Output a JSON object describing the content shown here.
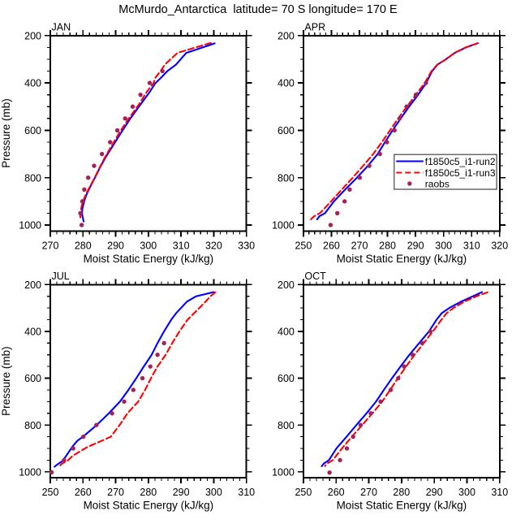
{
  "title": "McMurdo_Antarctica  latitude= 70 S longitude= 170 E",
  "colors": {
    "run2_line": "#0000ff",
    "run3_line": "#ff0000",
    "raobs_marker": "#a52158",
    "axis": "#000000",
    "background": "#ffffff"
  },
  "axes": {
    "xlabel": "Moist Static Energy (kJ/kg)",
    "ylabel": "Pressure (mb)",
    "yticks": [
      200,
      400,
      600,
      800,
      1000
    ],
    "ylim": [
      200,
      1025
    ],
    "y_minor_step": 50,
    "x_major_step": 10,
    "x_minor_step": 2,
    "y_axis_inverted": true,
    "grid": false
  },
  "legend": {
    "position": "inside-right-middle-of-APR-panel",
    "entries": [
      {
        "label": "f1850c5_i1-run2",
        "style": "solid-line",
        "color": "#0000ff"
      },
      {
        "label": "f1850c5_i1-run3",
        "style": "dashed-line",
        "color": "#ff0000"
      },
      {
        "label": "raobs",
        "style": "dot-marker",
        "color": "#a52158"
      }
    ]
  },
  "chart_data": [
    {
      "type": "line",
      "panel": "JAN",
      "xlabel": "Moist Static Energy (kJ/kg)",
      "xlim": [
        270,
        330
      ],
      "xticks": [
        270,
        280,
        290,
        300,
        310,
        320,
        330
      ],
      "show_legend": false,
      "series": [
        {
          "name": "f1850c5_i1-run2",
          "type": "line",
          "style": "solid",
          "color_key": "run2_line",
          "points": [
            [
              320.3,
              233
            ],
            [
              311.6,
              273
            ],
            [
              308.5,
              322
            ],
            [
              305.8,
              350
            ],
            [
              303.8,
              379
            ],
            [
              302.2,
              400
            ],
            [
              300.5,
              436
            ],
            [
              297.4,
              495
            ],
            [
              294.4,
              552
            ],
            [
              291.7,
              609
            ],
            [
              289.3,
              662
            ],
            [
              287.0,
              712
            ],
            [
              285.2,
              757
            ],
            [
              283.7,
              799
            ],
            [
              282.3,
              836
            ],
            [
              281.2,
              867
            ],
            [
              280.5,
              893
            ],
            [
              280.1,
              915
            ],
            [
              279.8,
              932
            ],
            [
              279.7,
              950
            ],
            [
              279.9,
              966
            ],
            [
              280.2,
              985
            ]
          ]
        },
        {
          "name": "f1850c5_i1-run3",
          "type": "line",
          "style": "dashed",
          "color_key": "run3_line",
          "points": [
            [
              319.1,
              231
            ],
            [
              308.9,
              273
            ],
            [
              305.1,
              322
            ],
            [
              303.7,
              350
            ],
            [
              302.1,
              379
            ],
            [
              301.6,
              400
            ],
            [
              299.6,
              436
            ],
            [
              296.9,
              495
            ],
            [
              293.9,
              552
            ],
            [
              291.2,
              609
            ],
            [
              288.9,
              662
            ],
            [
              286.8,
              712
            ],
            [
              285.1,
              757
            ],
            [
              283.6,
              799
            ],
            [
              282.2,
              836
            ],
            [
              281.0,
              867
            ],
            [
              280.2,
              893
            ],
            [
              279.7,
              915
            ],
            [
              279.4,
              932
            ],
            [
              279.2,
              950
            ],
            [
              279.2,
              968
            ]
          ]
        },
        {
          "name": "raobs",
          "type": "scatter",
          "color_key": "raobs_marker",
          "points": [
            [
              279.6,
              1000
            ],
            [
              279.2,
              950
            ],
            [
              279.8,
              900
            ],
            [
              280.4,
              850
            ],
            [
              281.6,
              800
            ],
            [
              283.4,
              750
            ],
            [
              285.8,
              700
            ],
            [
              288.3,
              650
            ],
            [
              290.5,
              600
            ],
            [
              292.9,
              550
            ],
            [
              295.2,
              500
            ],
            [
              297.6,
              450
            ],
            [
              300.4,
              400
            ],
            [
              304.3,
              350
            ]
          ]
        }
      ]
    },
    {
      "type": "line",
      "panel": "APR",
      "xlabel": "Moist Static Energy (kJ/kg)",
      "xlim": [
        250,
        320
      ],
      "xticks": [
        250,
        260,
        270,
        280,
        290,
        300,
        310,
        320
      ],
      "show_legend": true,
      "series": [
        {
          "name": "f1850c5_i1-run2",
          "type": "line",
          "style": "solid",
          "color_key": "run2_line",
          "points": [
            [
              312.2,
              232
            ],
            [
              308.0,
              250
            ],
            [
              304.0,
              273
            ],
            [
              300.8,
              300
            ],
            [
              297.9,
              322
            ],
            [
              295.9,
              350
            ],
            [
              293.8,
              400
            ],
            [
              290.9,
              450
            ],
            [
              287.7,
              500
            ],
            [
              284.7,
              550
            ],
            [
              281.8,
              600
            ],
            [
              279.1,
              650
            ],
            [
              276.5,
              700
            ],
            [
              273.0,
              750
            ],
            [
              269.1,
              800
            ],
            [
              264.9,
              850
            ],
            [
              260.9,
              900
            ],
            [
              257.7,
              950
            ],
            [
              255.7,
              963
            ],
            [
              254.9,
              976
            ]
          ]
        },
        {
          "name": "f1850c5_i1-run3",
          "type": "line",
          "style": "dashed",
          "color_key": "run3_line",
          "points": [
            [
              312.1,
              233
            ],
            [
              307.9,
              250
            ],
            [
              303.9,
              273
            ],
            [
              301.0,
              300
            ],
            [
              297.8,
              322
            ],
            [
              295.7,
              350
            ],
            [
              293.3,
              400
            ],
            [
              290.1,
              450
            ],
            [
              286.9,
              500
            ],
            [
              283.8,
              550
            ],
            [
              280.9,
              600
            ],
            [
              278.0,
              650
            ],
            [
              274.9,
              700
            ],
            [
              271.3,
              750
            ],
            [
              267.6,
              800
            ],
            [
              263.7,
              850
            ],
            [
              259.9,
              900
            ],
            [
              255.9,
              950
            ],
            [
              253.8,
              963
            ],
            [
              252.7,
              976
            ]
          ]
        },
        {
          "name": "raobs",
          "type": "scatter",
          "color_key": "raobs_marker",
          "points": [
            [
              259.7,
              1000
            ],
            [
              262.1,
              950
            ],
            [
              264.7,
              900
            ],
            [
              266.5,
              850
            ],
            [
              270.1,
              800
            ],
            [
              273.5,
              750
            ],
            [
              277.3,
              700
            ],
            [
              279.8,
              650
            ],
            [
              282.5,
              600
            ],
            [
              284.3,
              550
            ],
            [
              286.8,
              500
            ],
            [
              290.1,
              450
            ],
            [
              293.7,
              400
            ]
          ]
        }
      ]
    },
    {
      "type": "line",
      "panel": "JUL",
      "xlabel": "Moist Static Energy (kJ/kg)",
      "xlim": [
        250,
        310
      ],
      "xticks": [
        250,
        260,
        270,
        280,
        290,
        300,
        310
      ],
      "show_legend": false,
      "series": [
        {
          "name": "f1850c5_i1-run2",
          "type": "line",
          "style": "solid",
          "color_key": "run2_line",
          "points": [
            [
              300.0,
              232
            ],
            [
              294.6,
              250
            ],
            [
              291.8,
              273
            ],
            [
              288.5,
              322
            ],
            [
              287.0,
              350
            ],
            [
              284.8,
              400
            ],
            [
              282.8,
              450
            ],
            [
              281.0,
              500
            ],
            [
              278.6,
              550
            ],
            [
              276.3,
              600
            ],
            [
              273.9,
              650
            ],
            [
              271.3,
              700
            ],
            [
              267.9,
              750
            ],
            [
              264.2,
              800
            ],
            [
              260.0,
              850
            ],
            [
              258.3,
              867
            ],
            [
              256.9,
              890
            ],
            [
              255.9,
              910
            ],
            [
              254.7,
              935
            ],
            [
              253.6,
              955
            ],
            [
              252.0,
              970
            ],
            [
              251.3,
              978
            ]
          ]
        },
        {
          "name": "f1850c5_i1-run3",
          "type": "line",
          "style": "dashed",
          "color_key": "run3_line",
          "points": [
            [
              300.5,
              233
            ],
            [
              299.0,
              250
            ],
            [
              297.5,
              273
            ],
            [
              295.6,
              300
            ],
            [
              294.0,
              322
            ],
            [
              292.0,
              350
            ],
            [
              289.5,
              400
            ],
            [
              287.3,
              450
            ],
            [
              285.3,
              500
            ],
            [
              282.8,
              550
            ],
            [
              280.8,
              600
            ],
            [
              279.0,
              650
            ],
            [
              276.9,
              700
            ],
            [
              273.6,
              750
            ],
            [
              271.2,
              800
            ],
            [
              268.5,
              850
            ],
            [
              265.8,
              867
            ],
            [
              261.5,
              893
            ],
            [
              258.8,
              915
            ],
            [
              256.8,
              932
            ],
            [
              255.5,
              950
            ],
            [
              253.5,
              966
            ],
            [
              252.5,
              980
            ]
          ]
        },
        {
          "name": "raobs",
          "type": "scatter",
          "color_key": "raobs_marker",
          "points": [
            [
              250.4,
              1002
            ],
            [
              254.2,
              950
            ],
            [
              257.0,
              900
            ],
            [
              260.1,
              850
            ],
            [
              264.1,
              800
            ],
            [
              268.9,
              750
            ],
            [
              272.6,
              700
            ],
            [
              275.4,
              650
            ],
            [
              278.2,
              600
            ],
            [
              280.6,
              550
            ],
            [
              282.8,
              500
            ],
            [
              284.8,
              450
            ]
          ]
        }
      ]
    },
    {
      "type": "line",
      "panel": "OCT",
      "xlabel": "Moist Static Energy (kJ/kg)",
      "xlim": [
        250,
        310
      ],
      "xticks": [
        250,
        260,
        270,
        280,
        290,
        300,
        310
      ],
      "show_legend": false,
      "series": [
        {
          "name": "f1850c5_i1-run2",
          "type": "line",
          "style": "solid",
          "color_key": "run2_line",
          "points": [
            [
              304.6,
              232
            ],
            [
              301.8,
              250
            ],
            [
              298.2,
              273
            ],
            [
              294.6,
              300
            ],
            [
              292.3,
              322
            ],
            [
              290.7,
              350
            ],
            [
              288.4,
              400
            ],
            [
              285.4,
              450
            ],
            [
              282.4,
              500
            ],
            [
              279.7,
              550
            ],
            [
              277.1,
              600
            ],
            [
              274.6,
              650
            ],
            [
              272.2,
              700
            ],
            [
              269.3,
              750
            ],
            [
              266.2,
              800
            ],
            [
              263.2,
              850
            ],
            [
              260.1,
              900
            ],
            [
              257.8,
              950
            ],
            [
              256.2,
              965
            ],
            [
              255.6,
              976
            ]
          ]
        },
        {
          "name": "f1850c5_i1-run3",
          "type": "line",
          "style": "dashed",
          "color_key": "run3_line",
          "points": [
            [
              306.3,
              233
            ],
            [
              302.9,
              250
            ],
            [
              299.2,
              273
            ],
            [
              295.9,
              300
            ],
            [
              293.8,
              322
            ],
            [
              292.2,
              350
            ],
            [
              289.6,
              400
            ],
            [
              286.8,
              450
            ],
            [
              284.0,
              500
            ],
            [
              281.4,
              550
            ],
            [
              278.9,
              600
            ],
            [
              276.5,
              650
            ],
            [
              274.1,
              700
            ],
            [
              271.1,
              750
            ],
            [
              268.0,
              800
            ],
            [
              264.8,
              850
            ],
            [
              261.8,
              900
            ],
            [
              259.0,
              950
            ],
            [
              257.2,
              965
            ],
            [
              256.6,
              975
            ]
          ]
        },
        {
          "name": "raobs",
          "type": "scatter",
          "color_key": "raobs_marker",
          "points": [
            [
              258.0,
              1003
            ],
            [
              261.2,
              950
            ],
            [
              263.3,
              900
            ],
            [
              265.2,
              850
            ],
            [
              267.5,
              800
            ],
            [
              270.6,
              750
            ],
            [
              273.6,
              700
            ],
            [
              276.7,
              650
            ],
            [
              279.0,
              600
            ],
            [
              280.8,
              550
            ],
            [
              283.4,
              500
            ],
            [
              286.3,
              450
            ],
            [
              288.8,
              400
            ]
          ]
        }
      ]
    }
  ]
}
